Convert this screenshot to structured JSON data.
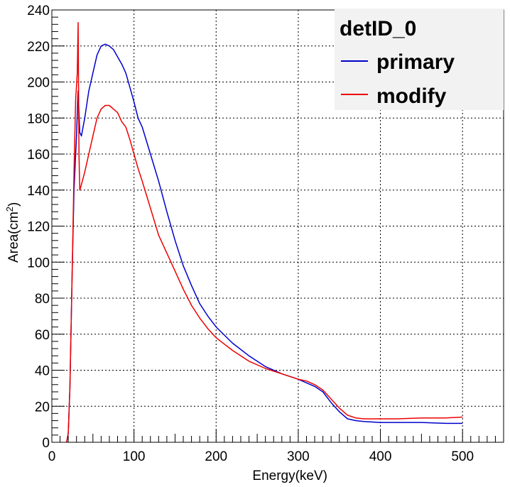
{
  "chart_data": {
    "type": "line",
    "title": "",
    "xlabel": "Energy(keV)",
    "ylabel_main": "Area(cm",
    "ylabel_sup": "2",
    "ylabel_close": ")",
    "xlim": [
      0,
      550
    ],
    "ylim": [
      0,
      240
    ],
    "xticks": [
      0,
      100,
      200,
      300,
      400,
      500
    ],
    "yticks": [
      0,
      20,
      40,
      60,
      80,
      100,
      120,
      140,
      160,
      180,
      200,
      220,
      240
    ],
    "grid": true,
    "legend": {
      "header": "detID_0",
      "placement": "top-right"
    },
    "series": [
      {
        "name": "primary",
        "color": "#0000cc",
        "x": [
          18,
          20,
          22,
          25,
          27,
          30,
          32,
          34,
          36,
          40,
          45,
          50,
          55,
          60,
          65,
          70,
          75,
          80,
          85,
          90,
          95,
          100,
          105,
          110,
          120,
          130,
          140,
          150,
          160,
          170,
          180,
          190,
          200,
          220,
          240,
          260,
          280,
          300,
          310,
          320,
          330,
          340,
          350,
          360,
          370,
          380,
          400,
          420,
          450,
          480,
          500
        ],
        "y": [
          0,
          5,
          30,
          100,
          140,
          170,
          195,
          172,
          170,
          180,
          195,
          205,
          215,
          220,
          221,
          220,
          218,
          214,
          210,
          205,
          197,
          189,
          180,
          175,
          160,
          145,
          128,
          112,
          98,
          87,
          77,
          70,
          64,
          55,
          48,
          42,
          38,
          35,
          33,
          31,
          28,
          22,
          17,
          13,
          12,
          11.5,
          11,
          11,
          11,
          10.5,
          10.5
        ]
      },
      {
        "name": "modify",
        "color": "#ee0000",
        "x": [
          18,
          20,
          22,
          25,
          27,
          29,
          31,
          32,
          33,
          34,
          36,
          40,
          45,
          50,
          55,
          60,
          65,
          70,
          75,
          80,
          85,
          90,
          95,
          100,
          105,
          110,
          120,
          130,
          140,
          150,
          160,
          170,
          180,
          190,
          200,
          220,
          240,
          260,
          280,
          300,
          310,
          320,
          330,
          340,
          350,
          360,
          370,
          380,
          400,
          420,
          450,
          480,
          500
        ],
        "y": [
          0,
          5,
          30,
          100,
          150,
          190,
          205,
          233,
          160,
          140,
          143,
          150,
          160,
          170,
          180,
          185,
          187,
          187,
          185,
          183,
          178,
          175,
          168,
          160,
          152,
          145,
          130,
          115,
          105,
          95,
          85,
          76,
          69,
          63,
          58,
          51,
          45,
          41,
          38,
          35,
          34,
          32,
          29,
          24,
          19,
          15,
          13.5,
          13,
          13,
          13,
          13.5,
          13.5,
          14
        ]
      }
    ]
  }
}
